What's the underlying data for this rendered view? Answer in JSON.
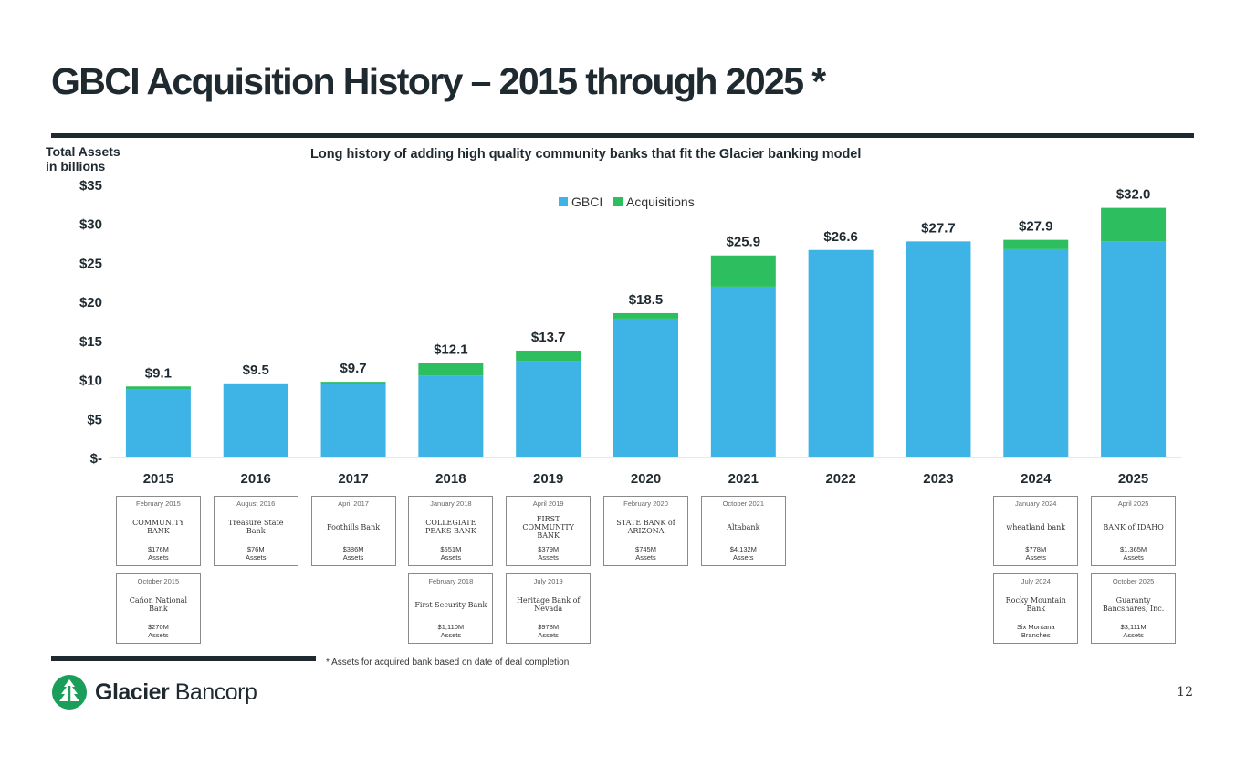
{
  "title": "GBCI Acquisition History – 2015 through 2025 *",
  "y_axis_label_line1": "Total Assets",
  "y_axis_label_line2": "in billions",
  "subtitle": "Long history of adding high quality community banks that fit the Glacier banking model",
  "colors": {
    "gbci": "#3db3e6",
    "acquisitions": "#2dbf5f",
    "dark": "#1f2a30",
    "brand_green": "#1a9e5a"
  },
  "chart_data": {
    "type": "bar",
    "stacked": true,
    "categories": [
      "2015",
      "2016",
      "2017",
      "2018",
      "2019",
      "2020",
      "2021",
      "2022",
      "2023",
      "2024",
      "2025"
    ],
    "series": [
      {
        "name": "GBCI",
        "values": [
          8.7,
          9.4,
          9.4,
          10.5,
          12.4,
          17.8,
          21.9,
          26.6,
          27.7,
          26.7,
          27.7
        ]
      },
      {
        "name": "Acquisitions",
        "values": [
          0.4,
          0.1,
          0.3,
          1.6,
          1.3,
          0.7,
          4.0,
          0,
          0,
          1.2,
          4.3
        ]
      }
    ],
    "totals_labels": [
      "$9.1",
      "$9.5",
      "$9.7",
      "$12.1",
      "$13.7",
      "$18.5",
      "$25.9",
      "$26.6",
      "$27.7",
      "$27.9",
      "$32.0"
    ],
    "y_ticks": [
      {
        "value": 0,
        "label": "$-"
      },
      {
        "value": 5,
        "label": "$5"
      },
      {
        "value": 10,
        "label": "$10"
      },
      {
        "value": 15,
        "label": "$15"
      },
      {
        "value": 20,
        "label": "$20"
      },
      {
        "value": 25,
        "label": "$25"
      },
      {
        "value": 30,
        "label": "$30"
      },
      {
        "value": 35,
        "label": "$35"
      }
    ],
    "ylim": [
      0,
      35
    ],
    "legend_position": "top-center",
    "grid": false
  },
  "acquisitions": [
    {
      "year_index": 0,
      "row": 0,
      "date": "February 2015",
      "logo": "COMMUNITY BANK",
      "assets": "$176M\nAssets"
    },
    {
      "year_index": 0,
      "row": 1,
      "date": "October 2015",
      "logo": "Cañon National Bank",
      "assets": "$270M\nAssets"
    },
    {
      "year_index": 1,
      "row": 0,
      "date": "August 2016",
      "logo": "Treasure State Bank",
      "assets": "$76M\nAssets"
    },
    {
      "year_index": 2,
      "row": 0,
      "date": "April 2017",
      "logo": "Foothills Bank",
      "assets": "$386M\nAssets"
    },
    {
      "year_index": 3,
      "row": 0,
      "date": "January 2018",
      "logo": "COLLEGIATE PEAKS BANK",
      "assets": "$551M\nAssets"
    },
    {
      "year_index": 3,
      "row": 1,
      "date": "February 2018",
      "logo": "First Security Bank",
      "assets": "$1,110M\nAssets"
    },
    {
      "year_index": 4,
      "row": 0,
      "date": "April 2019",
      "logo": "FIRST COMMUNITY BANK",
      "assets": "$379M\nAssets"
    },
    {
      "year_index": 4,
      "row": 1,
      "date": "July 2019",
      "logo": "Heritage Bank of Nevada",
      "assets": "$978M\nAssets"
    },
    {
      "year_index": 5,
      "row": 0,
      "date": "February 2020",
      "logo": "STATE BANK of ARIZONA",
      "assets": "$745M\nAssets"
    },
    {
      "year_index": 6,
      "row": 0,
      "date": "October 2021",
      "logo": "Altabank",
      "assets": "$4,132M\nAssets"
    },
    {
      "year_index": 9,
      "row": 0,
      "date": "January 2024",
      "logo": "wheatland bank",
      "assets": "$778M\nAssets"
    },
    {
      "year_index": 9,
      "row": 1,
      "date": "July 2024",
      "logo": "Rocky Mountain Bank",
      "assets": "Six Montana\nBranches"
    },
    {
      "year_index": 10,
      "row": 0,
      "date": "April 2025",
      "logo": "BANK of IDAHO",
      "assets": "$1,365M\nAssets"
    },
    {
      "year_index": 10,
      "row": 1,
      "date": "October 2025",
      "logo": "Guaranty Bancshares, Inc.",
      "assets": "$3,111M\nAssets"
    }
  ],
  "footnote": "* Assets for acquired bank based on date of deal completion",
  "brand": {
    "name_bold": "Glacier",
    "name_light": " Bancorp"
  },
  "page_number": "12"
}
